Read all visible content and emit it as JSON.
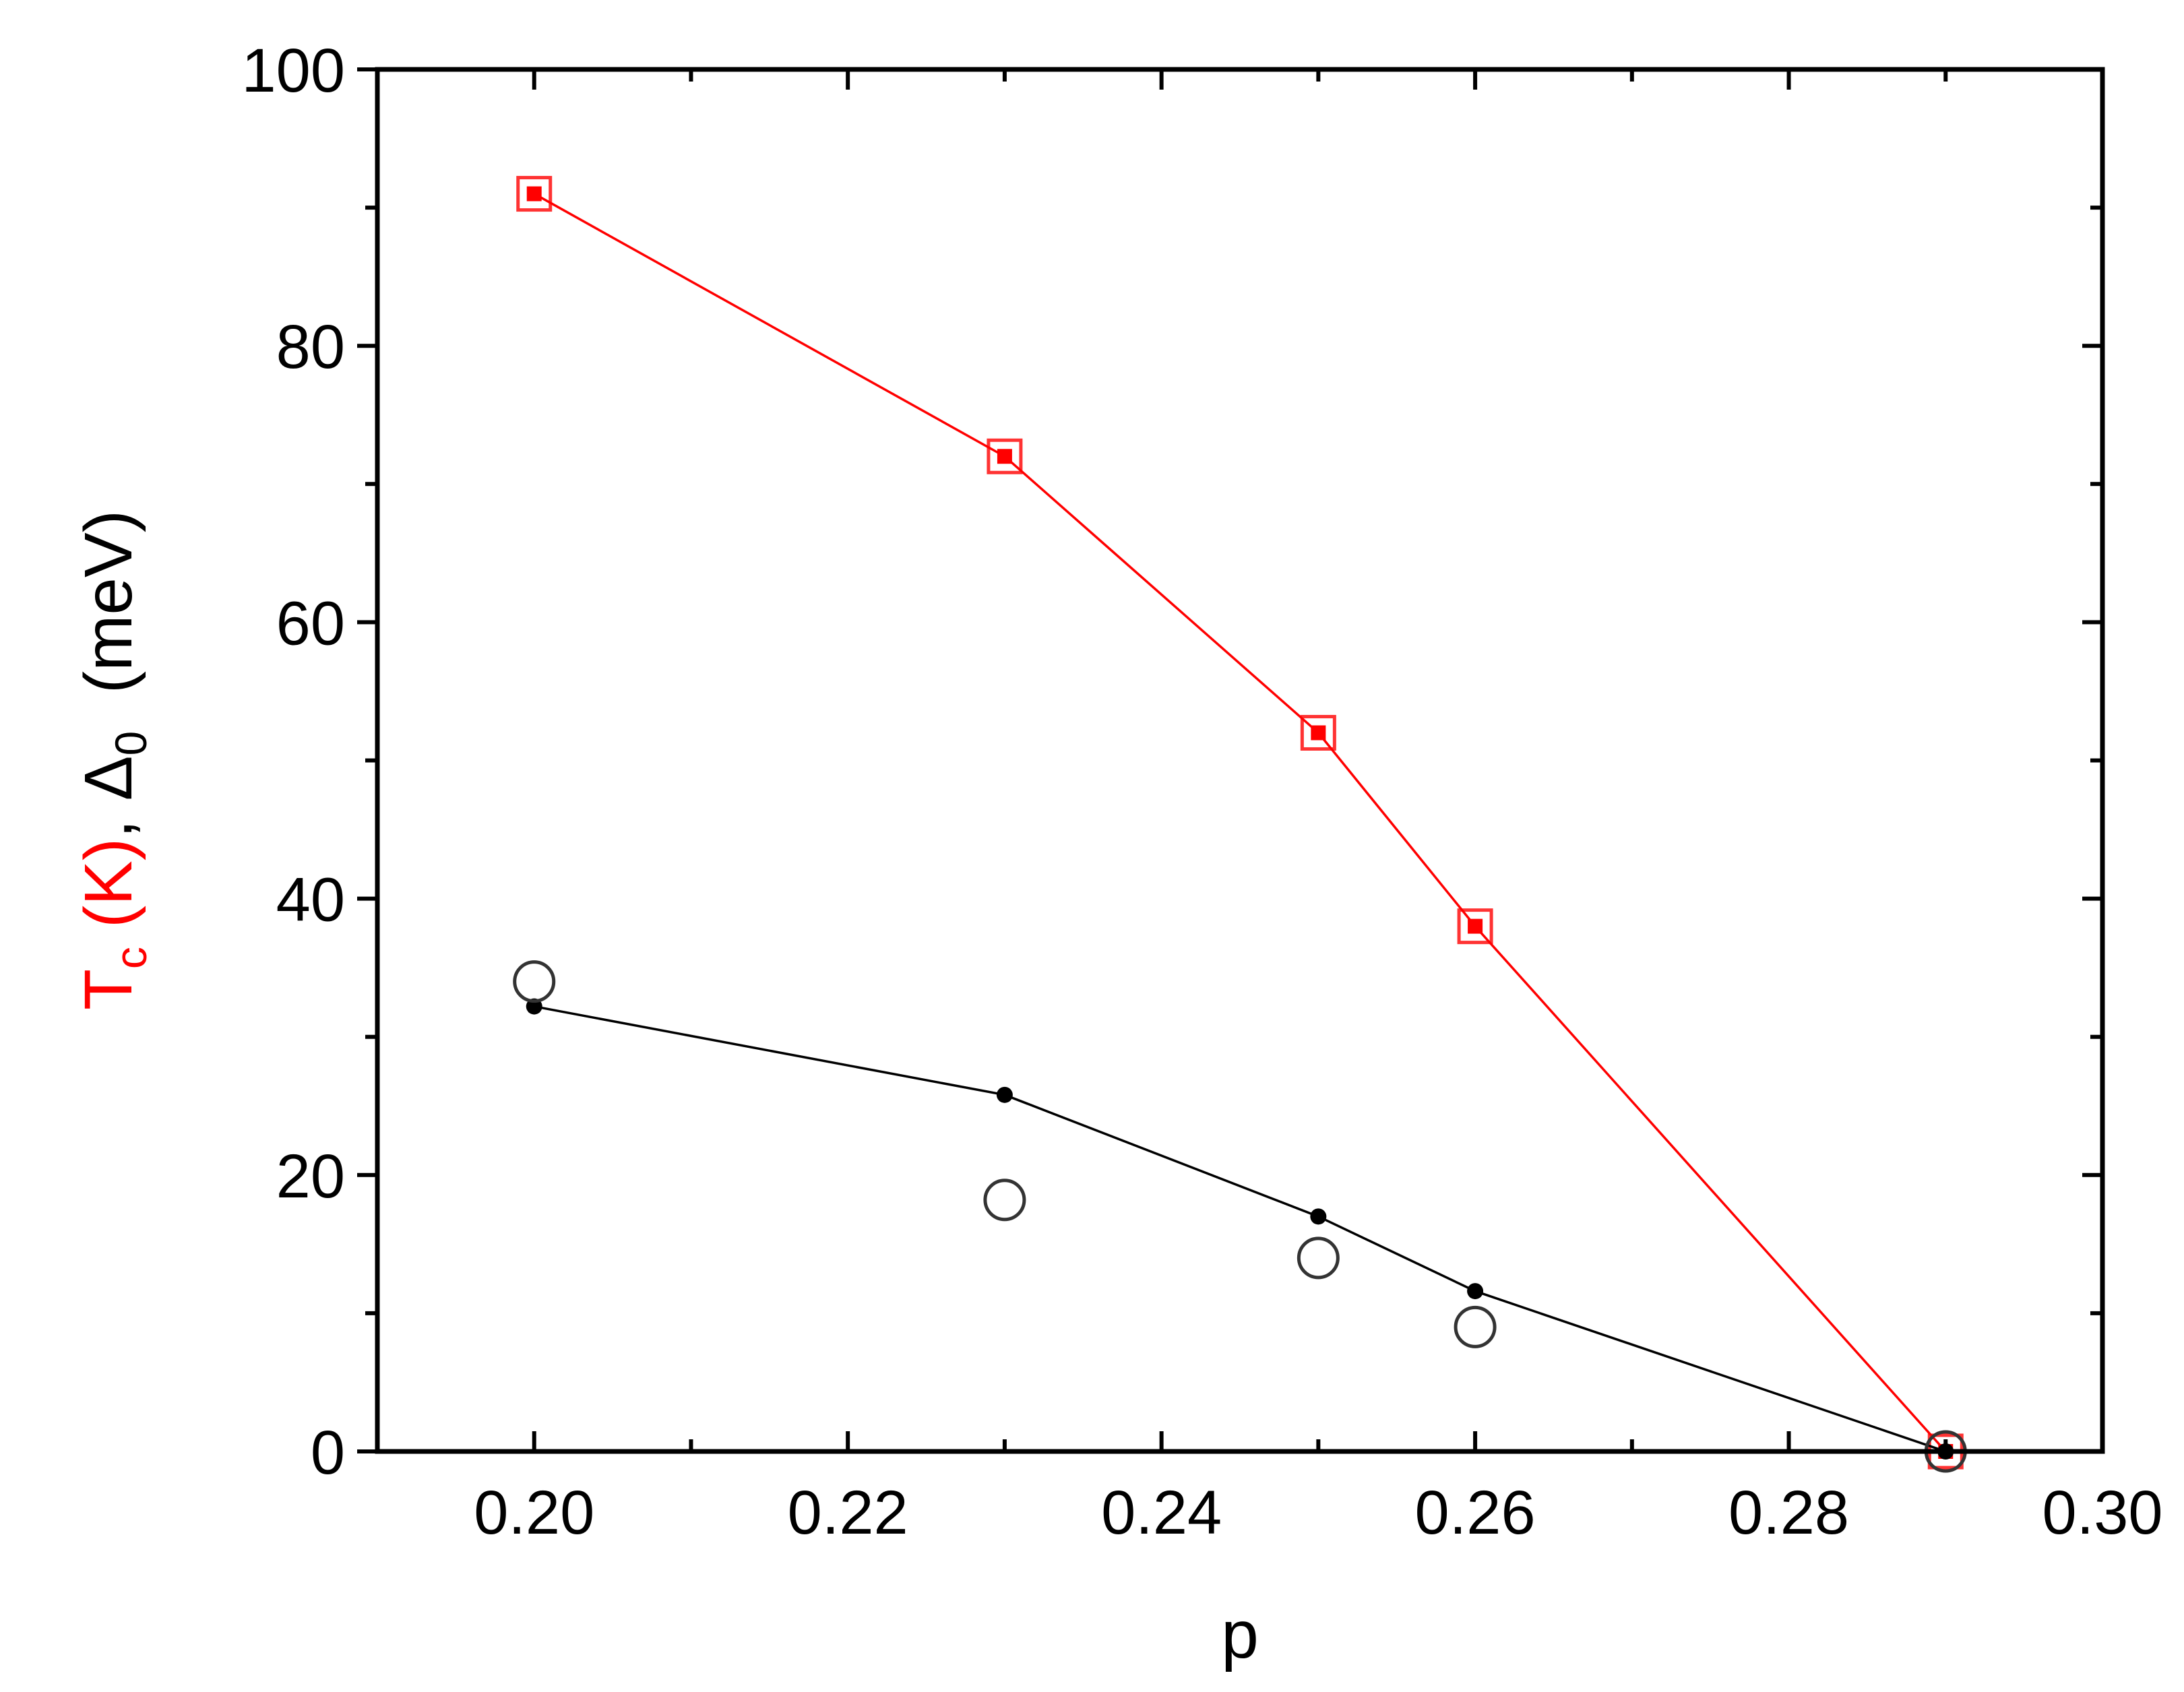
{
  "chart_data": {
    "type": "line",
    "xlabel": "p",
    "ylabel": {
      "tc_main": "T",
      "tc_sub": "c",
      "tc_unit": " (K)",
      "sep": ", ",
      "delta_main": "Δ",
      "delta_sub": "0",
      "unit": "  (meV)"
    },
    "xlim": [
      0.19,
      0.3
    ],
    "ylim": [
      0,
      100
    ],
    "x_ticks": [
      0.2,
      0.22,
      0.24,
      0.26,
      0.28,
      0.3
    ],
    "x_tick_labels": [
      "0.20",
      "0.22",
      "0.24",
      "0.26",
      "0.28",
      "0.30"
    ],
    "x_minor_ticks": [
      0.21,
      0.23,
      0.25,
      0.27,
      0.29
    ],
    "y_ticks": [
      0,
      20,
      40,
      60,
      80,
      100
    ],
    "y_tick_labels": [
      "0",
      "20",
      "40",
      "60",
      "80",
      "100"
    ],
    "y_minor_ticks": [
      10,
      30,
      50,
      70,
      90
    ],
    "grid": false,
    "legend": "none",
    "series": [
      {
        "marker": "open-square-with-filled-square",
        "line": true,
        "color": "#ff0000",
        "x": [
          0.2,
          0.23,
          0.25,
          0.26,
          0.29
        ],
        "y": [
          91,
          72,
          52,
          38,
          0
        ]
      },
      {
        "marker": "filled-circle",
        "line": true,
        "color": "#000000",
        "x": [
          0.2,
          0.23,
          0.25,
          0.26,
          0.29
        ],
        "y": [
          32.2,
          25.8,
          17,
          11.6,
          0
        ]
      },
      {
        "marker": "open-circle",
        "line": false,
        "color": "#333333",
        "x": [
          0.2,
          0.23,
          0.25,
          0.26,
          0.29
        ],
        "y": [
          34,
          18.2,
          14,
          9,
          0
        ]
      }
    ]
  }
}
